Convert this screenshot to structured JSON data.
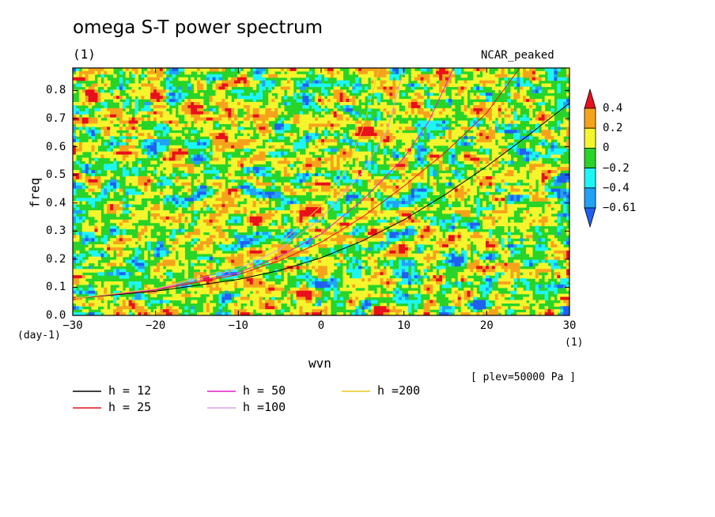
{
  "chart_data": {
    "type": "heatmap",
    "title": "omega S-T power spectrum",
    "subtitle_left": "(1)",
    "subtitle_right": "NCAR_peaked",
    "xlabel": "wvn",
    "ylabel": "freq",
    "x_unit_label": "(1)",
    "y_unit_label": "(day-1)",
    "xlim": [
      -30,
      30
    ],
    "ylim": [
      0,
      0.88
    ],
    "x_ticks": [
      -30,
      -20,
      -10,
      0,
      10,
      20,
      30
    ],
    "x_tick_labels": [
      "−30",
      "−20",
      "−10",
      "0",
      "10",
      "20",
      "30"
    ],
    "y_ticks": [
      0,
      0.1,
      0.2,
      0.3,
      0.4,
      0.5,
      0.6,
      0.7,
      0.8
    ],
    "y_tick_labels": [
      "0.0",
      "0.1",
      "0.2",
      "0.3",
      "0.4",
      "0.5",
      "0.6",
      "0.7",
      "0.8"
    ],
    "annotation": "[ plev=50000 Pa ]",
    "colorbar": {
      "levels": [
        0.4,
        0.2,
        0,
        -0.2,
        -0.4,
        -0.61
      ],
      "level_labels": [
        "0.4",
        "0.2",
        "0",
        "−0.2",
        "−0.4",
        "−0.61"
      ],
      "colors": [
        "#e8101a",
        "#f6a31c",
        "#f5f52d",
        "#28d428",
        "#1ef5f5",
        "#21a2f5",
        "#2060f0"
      ]
    },
    "series": [
      {
        "name": "h = 12",
        "h": 12,
        "color": "#000000",
        "points": [
          [
            -30,
            0.06
          ],
          [
            -20,
            0.086
          ],
          [
            -10,
            0.128
          ],
          [
            -5,
            0.16
          ],
          [
            0,
            0.205
          ],
          [
            5,
            0.265
          ],
          [
            10,
            0.34
          ],
          [
            15,
            0.43
          ],
          [
            20,
            0.53
          ],
          [
            25,
            0.64
          ],
          [
            30,
            0.755
          ]
        ]
      },
      {
        "name": "h = 25",
        "h": 25,
        "color": "#e41414",
        "points": [
          [
            -30,
            0.06
          ],
          [
            -20,
            0.09
          ],
          [
            -10,
            0.145
          ],
          [
            -5,
            0.195
          ],
          [
            0,
            0.26
          ],
          [
            5,
            0.35
          ],
          [
            10,
            0.46
          ],
          [
            15,
            0.58
          ],
          [
            20,
            0.72
          ],
          [
            24,
            0.88
          ]
        ]
      },
      {
        "name": "h = 50",
        "h": 50,
        "color": "#e01ec8",
        "points": [
          [
            -30,
            0.06
          ],
          [
            -20,
            0.092
          ],
          [
            -10,
            0.152
          ],
          [
            -5,
            0.21
          ],
          [
            0,
            0.29
          ],
          [
            5,
            0.41
          ],
          [
            10,
            0.56
          ],
          [
            13,
            0.69
          ],
          [
            16,
            0.88
          ]
        ]
      },
      {
        "name": "h =100",
        "h": 100,
        "color": "#d8a0e6",
        "points": [
          [
            -30,
            0.06
          ],
          [
            -20,
            0.094
          ],
          [
            -10,
            0.165
          ],
          [
            -5,
            0.235
          ],
          [
            0,
            0.345
          ],
          [
            5,
            0.51
          ],
          [
            8,
            0.66
          ],
          [
            10,
            0.88
          ]
        ]
      },
      {
        "name": "h =200",
        "h": 200,
        "color": "#e8c81e",
        "points": [
          [
            -30,
            0.06
          ],
          [
            -20,
            0.095
          ],
          [
            -10,
            0.175
          ],
          [
            -5,
            0.255
          ],
          [
            0,
            0.39
          ],
          [
            3,
            0.52
          ],
          [
            5,
            0.66
          ],
          [
            7,
            0.88
          ]
        ]
      }
    ]
  }
}
